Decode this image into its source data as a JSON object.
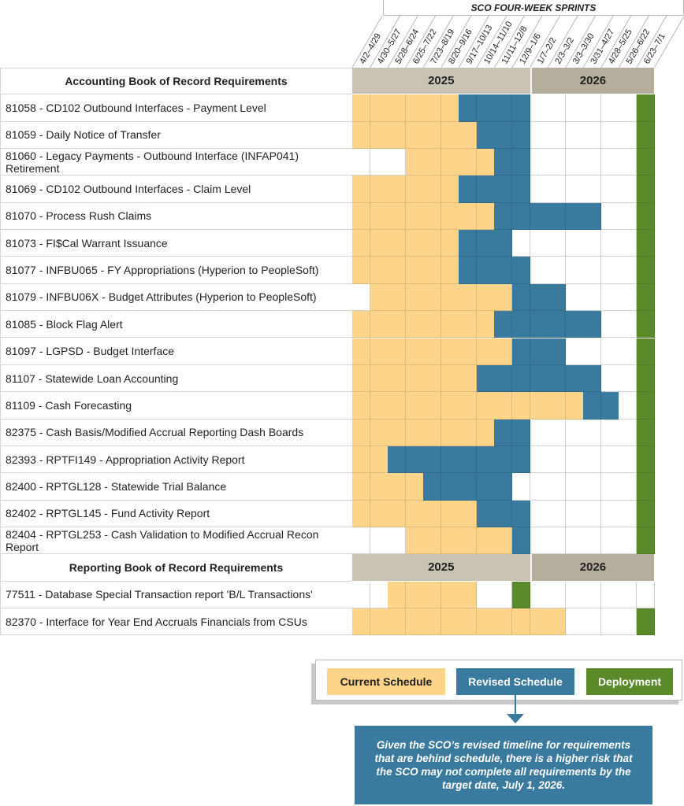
{
  "chart_data": {
    "type": "table",
    "title": "SCO FOUR-WEEK SPRINTS",
    "columns": [
      "4/2–4/29",
      "4/30–5/27",
      "5/28–6/24",
      "6/25–7/22",
      "7/23–8/19",
      "8/20–9/16",
      "9/17–10/13",
      "10/14–11/10",
      "11/11–12/8",
      "12/9–1/6",
      "1/7–2/2",
      "2/3–3/2",
      "3/3–3/30",
      "3/31–4/27",
      "4/28–5/25",
      "5/26–6/22",
      "6/23–7/1"
    ],
    "years": [
      {
        "label": "2025",
        "span": 10
      },
      {
        "label": "2026",
        "span": 7
      }
    ],
    "status_codes": {
      "Y": "Current Schedule",
      "B": "Revised Schedule",
      "G": "Deployment",
      "W": "None"
    },
    "sections": [
      {
        "title": "Accounting Book of Record Requirements",
        "rows": [
          {
            "label": "81058 - CD102 Outbound Interfaces - Payment Level",
            "cells": "YYYYYYBBBBWWWWWWG"
          },
          {
            "label": "81059 - Daily Notice of Transfer",
            "cells": "YYYYYYYBBBWWWWWWG"
          },
          {
            "label": "81060 - Legacy Payments - Outbound Interface (INFAP041) Retirement",
            "cells": "WWWYYYYYBBWWWWWWG"
          },
          {
            "label": "81069 - CD102 Outbound Interfaces - Claim Level",
            "cells": "YYYYYYBBBBWWWWWWG"
          },
          {
            "label": "81070 - Process Rush Claims",
            "cells": "YYYYYYYYBBBBBBWWG"
          },
          {
            "label": "81073 - FI$Cal Warrant Issuance",
            "cells": "YYYYYYBBBWWWWWWWG"
          },
          {
            "label": "81077 - INFBU065 - FY Appropriations (Hyperion to PeopleSoft)",
            "cells": "YYYYYYBBBBWWWWWWG"
          },
          {
            "label": "81079 - INFBU06X - Budget Attributes (Hyperion to PeopleSoft)",
            "cells": "WYYYYYYYYBBBWWWWG"
          },
          {
            "label": "81085 - Block Flag Alert",
            "cells": "YYYYYYYYBBBBBBWWG"
          },
          {
            "label": "81097 - LGPSD - Budget Interface",
            "cells": "YYYYYYYYYBBBWWWWG"
          },
          {
            "label": "81107 - Statewide Loan Accounting",
            "cells": "YYYYYYYBBBBBBBWWG"
          },
          {
            "label": "81109 - Cash Forecasting",
            "cells": "YYYYYYYYYYYYYBBWG"
          },
          {
            "label": "82375 - Cash Basis/Modified Accrual Reporting Dash Boards",
            "cells": "YYYYYYYYBBWWWWWWG"
          },
          {
            "label": "82393 - RPTFI149 - Appropriation Activity Report",
            "cells": "YYBBBBBBBBWWWWWWG"
          },
          {
            "label": "82400 - RPTGL128 - Statewide Trial Balance",
            "cells": "YYYYBBBBBWWWWWWWG"
          },
          {
            "label": "82402 - RPTGL145 - Fund Activity Report",
            "cells": "YYYYYYYBBBWWWWWWG"
          },
          {
            "label": "82404 - RPTGL253 - Cash Validation to Modified Accrual Recon Report",
            "cells": "WWWYYYYYYBWWWWWWG"
          }
        ]
      },
      {
        "title": "Reporting Book of Record Requirements",
        "rows": [
          {
            "label": "77511 - Database Special Transaction report 'B/L Transactions'",
            "cells": "WWYYYYYWWGWWWWWWW"
          },
          {
            "label": "82370 - Interface for Year End Accruals Financials from CSUs",
            "cells": "YYYYYYYYYYYYWWWWG"
          }
        ]
      }
    ],
    "legend": {
      "current": "Current Schedule",
      "revised": "Revised Schedule",
      "deployment": "Deployment"
    },
    "callout": "Given the SCO’s revised timeline for requirements that are behind schedule, there is a higher risk that the SCO may not complete all requirements by the target date, July 1, 2026."
  },
  "colors": {
    "Y": "#fcd48a",
    "B": "#3a7a9e",
    "G": "#5b8a2b",
    "W": "#ffffff",
    "year2025": "#c9c3b4",
    "year2026": "#b6ae9c"
  }
}
